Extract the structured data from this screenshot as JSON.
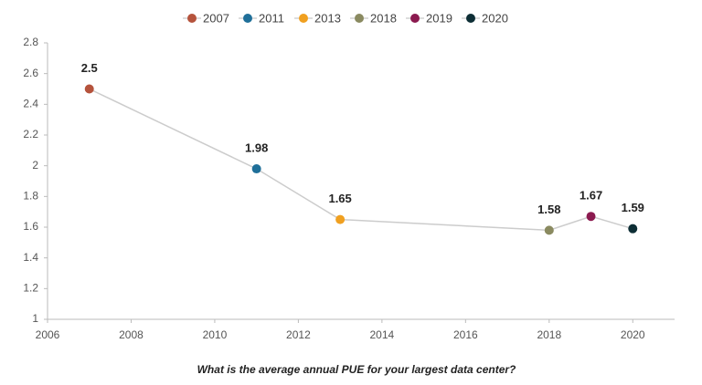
{
  "chart_data": {
    "type": "line",
    "xlabel": "What is the average annual PUE for your largest data center?",
    "x": [
      2007,
      2011,
      2013,
      2018,
      2019,
      2020
    ],
    "values": [
      2.5,
      1.98,
      1.65,
      1.58,
      1.67,
      1.59
    ],
    "point_colors": [
      "#b5533c",
      "#1f6f99",
      "#f0a020",
      "#8a8a60",
      "#8b1a4f",
      "#0d2e35"
    ],
    "line_color": "#cccccc",
    "xlim": [
      2006,
      2021
    ],
    "xticks": [
      2006,
      2008,
      2010,
      2012,
      2014,
      2016,
      2018,
      2020
    ],
    "ylim": [
      1,
      2.8
    ],
    "yticks": [
      1,
      1.2,
      1.4,
      1.6,
      1.8,
      2,
      2.2,
      2.4,
      2.6,
      2.8
    ],
    "grid": false,
    "legend": "top"
  }
}
